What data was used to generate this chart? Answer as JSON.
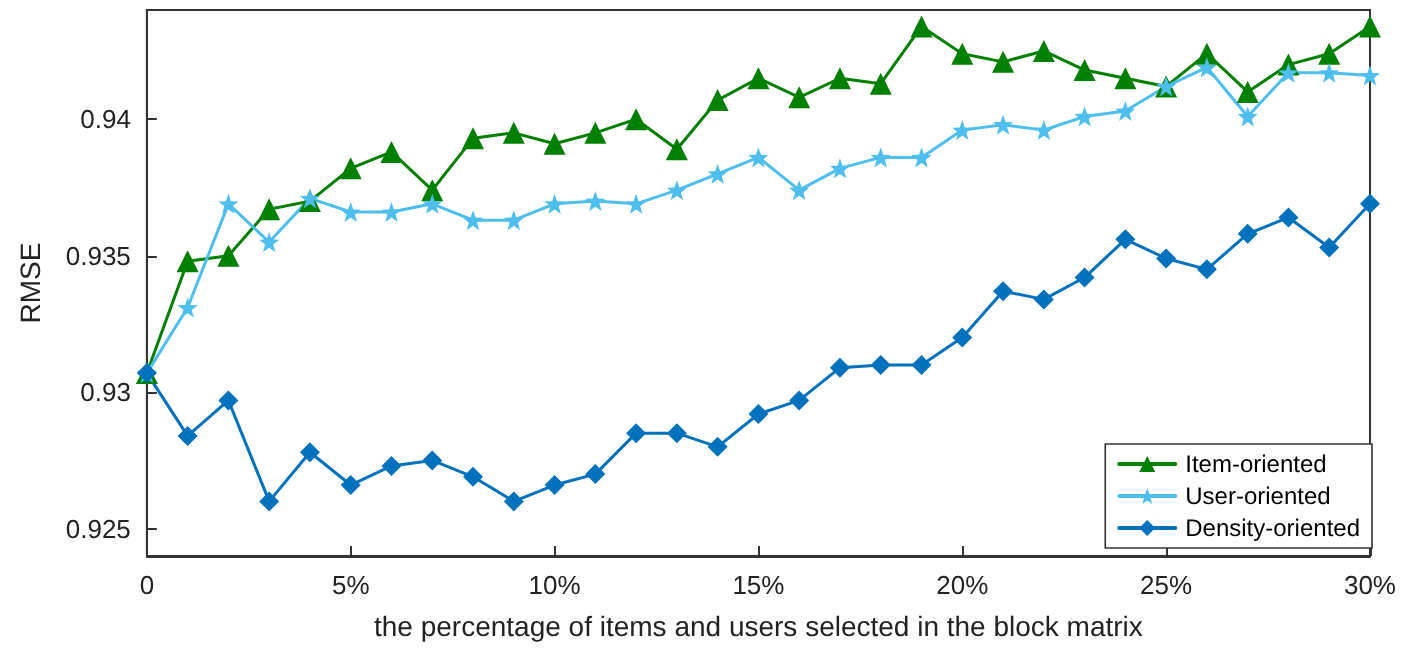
{
  "chart_data": {
    "type": "line",
    "xlabel": "the percentage of items and users selected in the block matrix",
    "ylabel": "RMSE",
    "x": [
      0,
      1,
      2,
      3,
      4,
      5,
      6,
      7,
      8,
      9,
      10,
      11,
      12,
      13,
      14,
      15,
      16,
      17,
      18,
      19,
      20,
      21,
      22,
      23,
      24,
      25,
      26,
      27,
      28,
      29,
      30
    ],
    "series": [
      {
        "name": "Item-oriented",
        "color": "#008000",
        "marker": "triangle",
        "values": [
          0.9307,
          0.9348,
          0.935,
          0.9367,
          0.937,
          0.9382,
          0.9388,
          0.9374,
          0.9393,
          0.9395,
          0.9391,
          0.9395,
          0.94,
          0.9389,
          0.9407,
          0.9415,
          0.9408,
          0.9415,
          0.9413,
          0.9434,
          0.9424,
          0.9421,
          0.9425,
          0.9418,
          0.9415,
          0.9412,
          0.9424,
          0.941,
          0.942,
          0.9424,
          0.9434
        ]
      },
      {
        "name": "User-oriented",
        "color": "#4dbeee",
        "marker": "star",
        "values": [
          0.9307,
          0.9331,
          0.9369,
          0.9355,
          0.9371,
          0.9366,
          0.9366,
          0.9369,
          0.9363,
          0.9363,
          0.9369,
          0.937,
          0.9369,
          0.9374,
          0.938,
          0.9386,
          0.9374,
          0.9382,
          0.9386,
          0.9386,
          0.9396,
          0.9398,
          0.9396,
          0.9401,
          0.9403,
          0.9412,
          0.9419,
          0.9401,
          0.9417,
          0.9417,
          0.9416
        ]
      },
      {
        "name": "Density-oriented",
        "color": "#0072bd",
        "marker": "diamond",
        "values": [
          0.9307,
          0.9284,
          0.9297,
          0.926,
          0.9278,
          0.9266,
          0.9273,
          0.9275,
          0.9269,
          0.926,
          0.9266,
          0.927,
          0.9285,
          0.9285,
          0.928,
          0.9292,
          0.9297,
          0.9309,
          0.931,
          0.931,
          0.932,
          0.9337,
          0.9334,
          0.9342,
          0.9356,
          0.9349,
          0.9345,
          0.9358,
          0.9364,
          0.9353,
          0.9369
        ]
      }
    ],
    "xlim": [
      0,
      30
    ],
    "xticks": [
      {
        "value": 0,
        "label": "0"
      },
      {
        "value": 5,
        "label": "5%"
      },
      {
        "value": 10,
        "label": "10%"
      },
      {
        "value": 15,
        "label": "15%"
      },
      {
        "value": 20,
        "label": "20%"
      },
      {
        "value": 25,
        "label": "25%"
      },
      {
        "value": 30,
        "label": "30%"
      }
    ],
    "ylim": [
      0.924,
      0.944
    ],
    "yticks": [
      0.925,
      0.93,
      0.935,
      0.94
    ],
    "grid": false,
    "legend": "bottom right",
    "line_style": "solid"
  }
}
